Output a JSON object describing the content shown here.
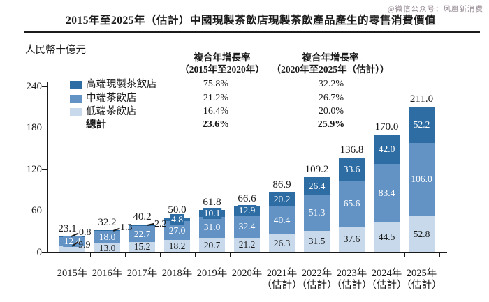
{
  "watermark": "@微信公众号：凤凰新消费",
  "title": "2015年至2025年（估計）中國現製茶飲店現製茶飲產品產生的零售消費價值",
  "y_axis_unit": "人民幣十億元",
  "cagr_columns": [
    {
      "header_line1": "複合年增長率",
      "header_line2": "（2015年至2020年）",
      "values": [
        "75.8%",
        "21.2%",
        "16.4%",
        "23.6%"
      ]
    },
    {
      "header_line1": "複合年增長率",
      "header_line2": "（2020年至2025年（估計））",
      "values": [
        "32.2%",
        "26.7%",
        "20.0%",
        "25.9%"
      ]
    }
  ],
  "legend": [
    {
      "label": "高端現製茶飲店",
      "color": "#2e6da4"
    },
    {
      "label": "中端茶飲店",
      "color": "#6393c5"
    },
    {
      "label": "低端茶飲店",
      "color": "#c7d9ea"
    },
    {
      "label": "總計",
      "color": null,
      "bold": true
    }
  ],
  "chart_data": {
    "type": "bar",
    "stacked": true,
    "grid": false,
    "legend_position": "top-left",
    "title": "2015年至2025年（估計）中國現製茶飲店現製茶飲產品產生的零售消費價值",
    "ylabel": "人民幣十億元",
    "ylim": [
      0,
      240
    ],
    "yticks": [
      0,
      60,
      120,
      180,
      240
    ],
    "categories": [
      {
        "label": "2015年"
      },
      {
        "label": "2016年"
      },
      {
        "label": "2017年"
      },
      {
        "label": "2018年"
      },
      {
        "label": "2019年"
      },
      {
        "label": "2020年"
      },
      {
        "label": "2021年",
        "sublabel": "（估計）"
      },
      {
        "label": "2022年",
        "sublabel": "（估計）"
      },
      {
        "label": "2023年",
        "sublabel": "（估計）"
      },
      {
        "label": "2024年",
        "sublabel": "（估計）"
      },
      {
        "label": "2025年",
        "sublabel": "（估計）"
      }
    ],
    "series": [
      {
        "key": "low",
        "name": "低端茶飲店",
        "color": "#c7d9ea",
        "label_color": "#1a1a1a",
        "values": [
          9.9,
          13.0,
          15.2,
          18.2,
          20.7,
          21.2,
          26.3,
          31.5,
          37.6,
          44.5,
          52.8
        ]
      },
      {
        "key": "mid",
        "name": "中端茶飲店",
        "color": "#6393c5",
        "label_color": "#ffffff",
        "values": [
          12.4,
          18.0,
          22.7,
          27.0,
          31.0,
          32.4,
          40.4,
          51.3,
          65.6,
          83.4,
          106.0
        ]
      },
      {
        "key": "high",
        "name": "高端現製茶飲店",
        "color": "#2e6da4",
        "label_color": "#ffffff",
        "values": [
          0.8,
          1.3,
          2.2,
          4.8,
          10.1,
          12.9,
          20.2,
          26.4,
          33.6,
          42.0,
          52.2
        ]
      }
    ],
    "totals": [
      23.1,
      32.2,
      40.2,
      50.0,
      61.8,
      66.6,
      86.9,
      109.2,
      136.8,
      170.0,
      211.0
    ],
    "cagr_2015_2020": {
      "高端現製茶飲店": "75.8%",
      "中端茶飲店": "21.2%",
      "低端茶飲店": "16.4%",
      "總計": "23.6%"
    },
    "cagr_2020_2025e": {
      "高端現製茶飲店": "32.2%",
      "中端茶飲店": "26.7%",
      "低端茶飲店": "20.0%",
      "總計": "25.9%"
    }
  }
}
